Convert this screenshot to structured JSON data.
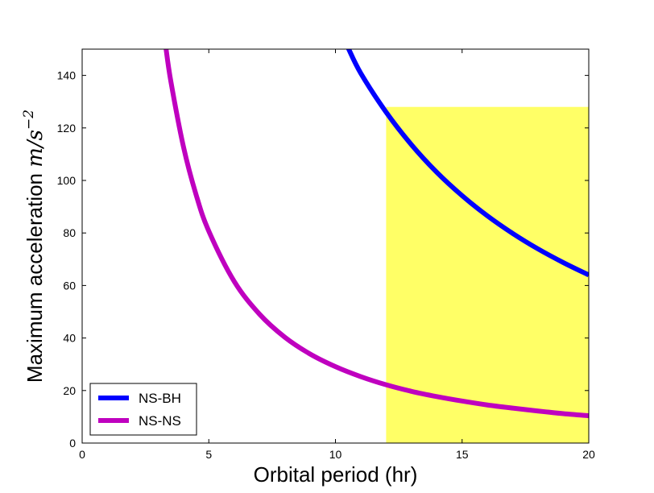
{
  "chart_data": {
    "type": "line",
    "xlabel": "Orbital period (hr)",
    "ylabel": "Maximum acceleration m/s^-2",
    "ylabel_text": "Maximum acceleration",
    "ylabel_math_base": "m/s",
    "ylabel_math_exp": "−2",
    "xlim": [
      0,
      20
    ],
    "ylim": [
      0,
      150
    ],
    "xticks": [
      0,
      5,
      10,
      15,
      20
    ],
    "yticks": [
      0,
      20,
      40,
      60,
      80,
      100,
      120,
      140
    ],
    "grid": false,
    "legend_position": "lower-left",
    "shaded_region": {
      "x": [
        12,
        20
      ],
      "y": [
        0,
        128
      ],
      "color": "#ffff66"
    },
    "series": [
      {
        "name": "NS-BH",
        "color": "#0000ff",
        "x": [
          10.5,
          11,
          12,
          13,
          14,
          15,
          16,
          17,
          18,
          19,
          20
        ],
        "y": [
          150.5,
          140.8,
          126.0,
          113.6,
          103.1,
          94.2,
          86.5,
          79.8,
          73.9,
          68.7,
          64.0
        ]
      },
      {
        "name": "NS-NS",
        "color": "#bf00bf",
        "x": [
          3.3,
          3.5,
          4,
          4.5,
          5,
          6,
          7,
          8,
          9,
          10,
          11,
          12,
          13,
          14,
          15,
          16,
          17,
          18,
          19,
          20
        ],
        "y": [
          151.0,
          137.8,
          112.8,
          94.5,
          80.7,
          61.6,
          49.1,
          40.3,
          33.9,
          29.1,
          25.3,
          22.2,
          19.7,
          17.7,
          16.0,
          14.5,
          13.3,
          12.2,
          11.2,
          10.4
        ]
      }
    ]
  }
}
